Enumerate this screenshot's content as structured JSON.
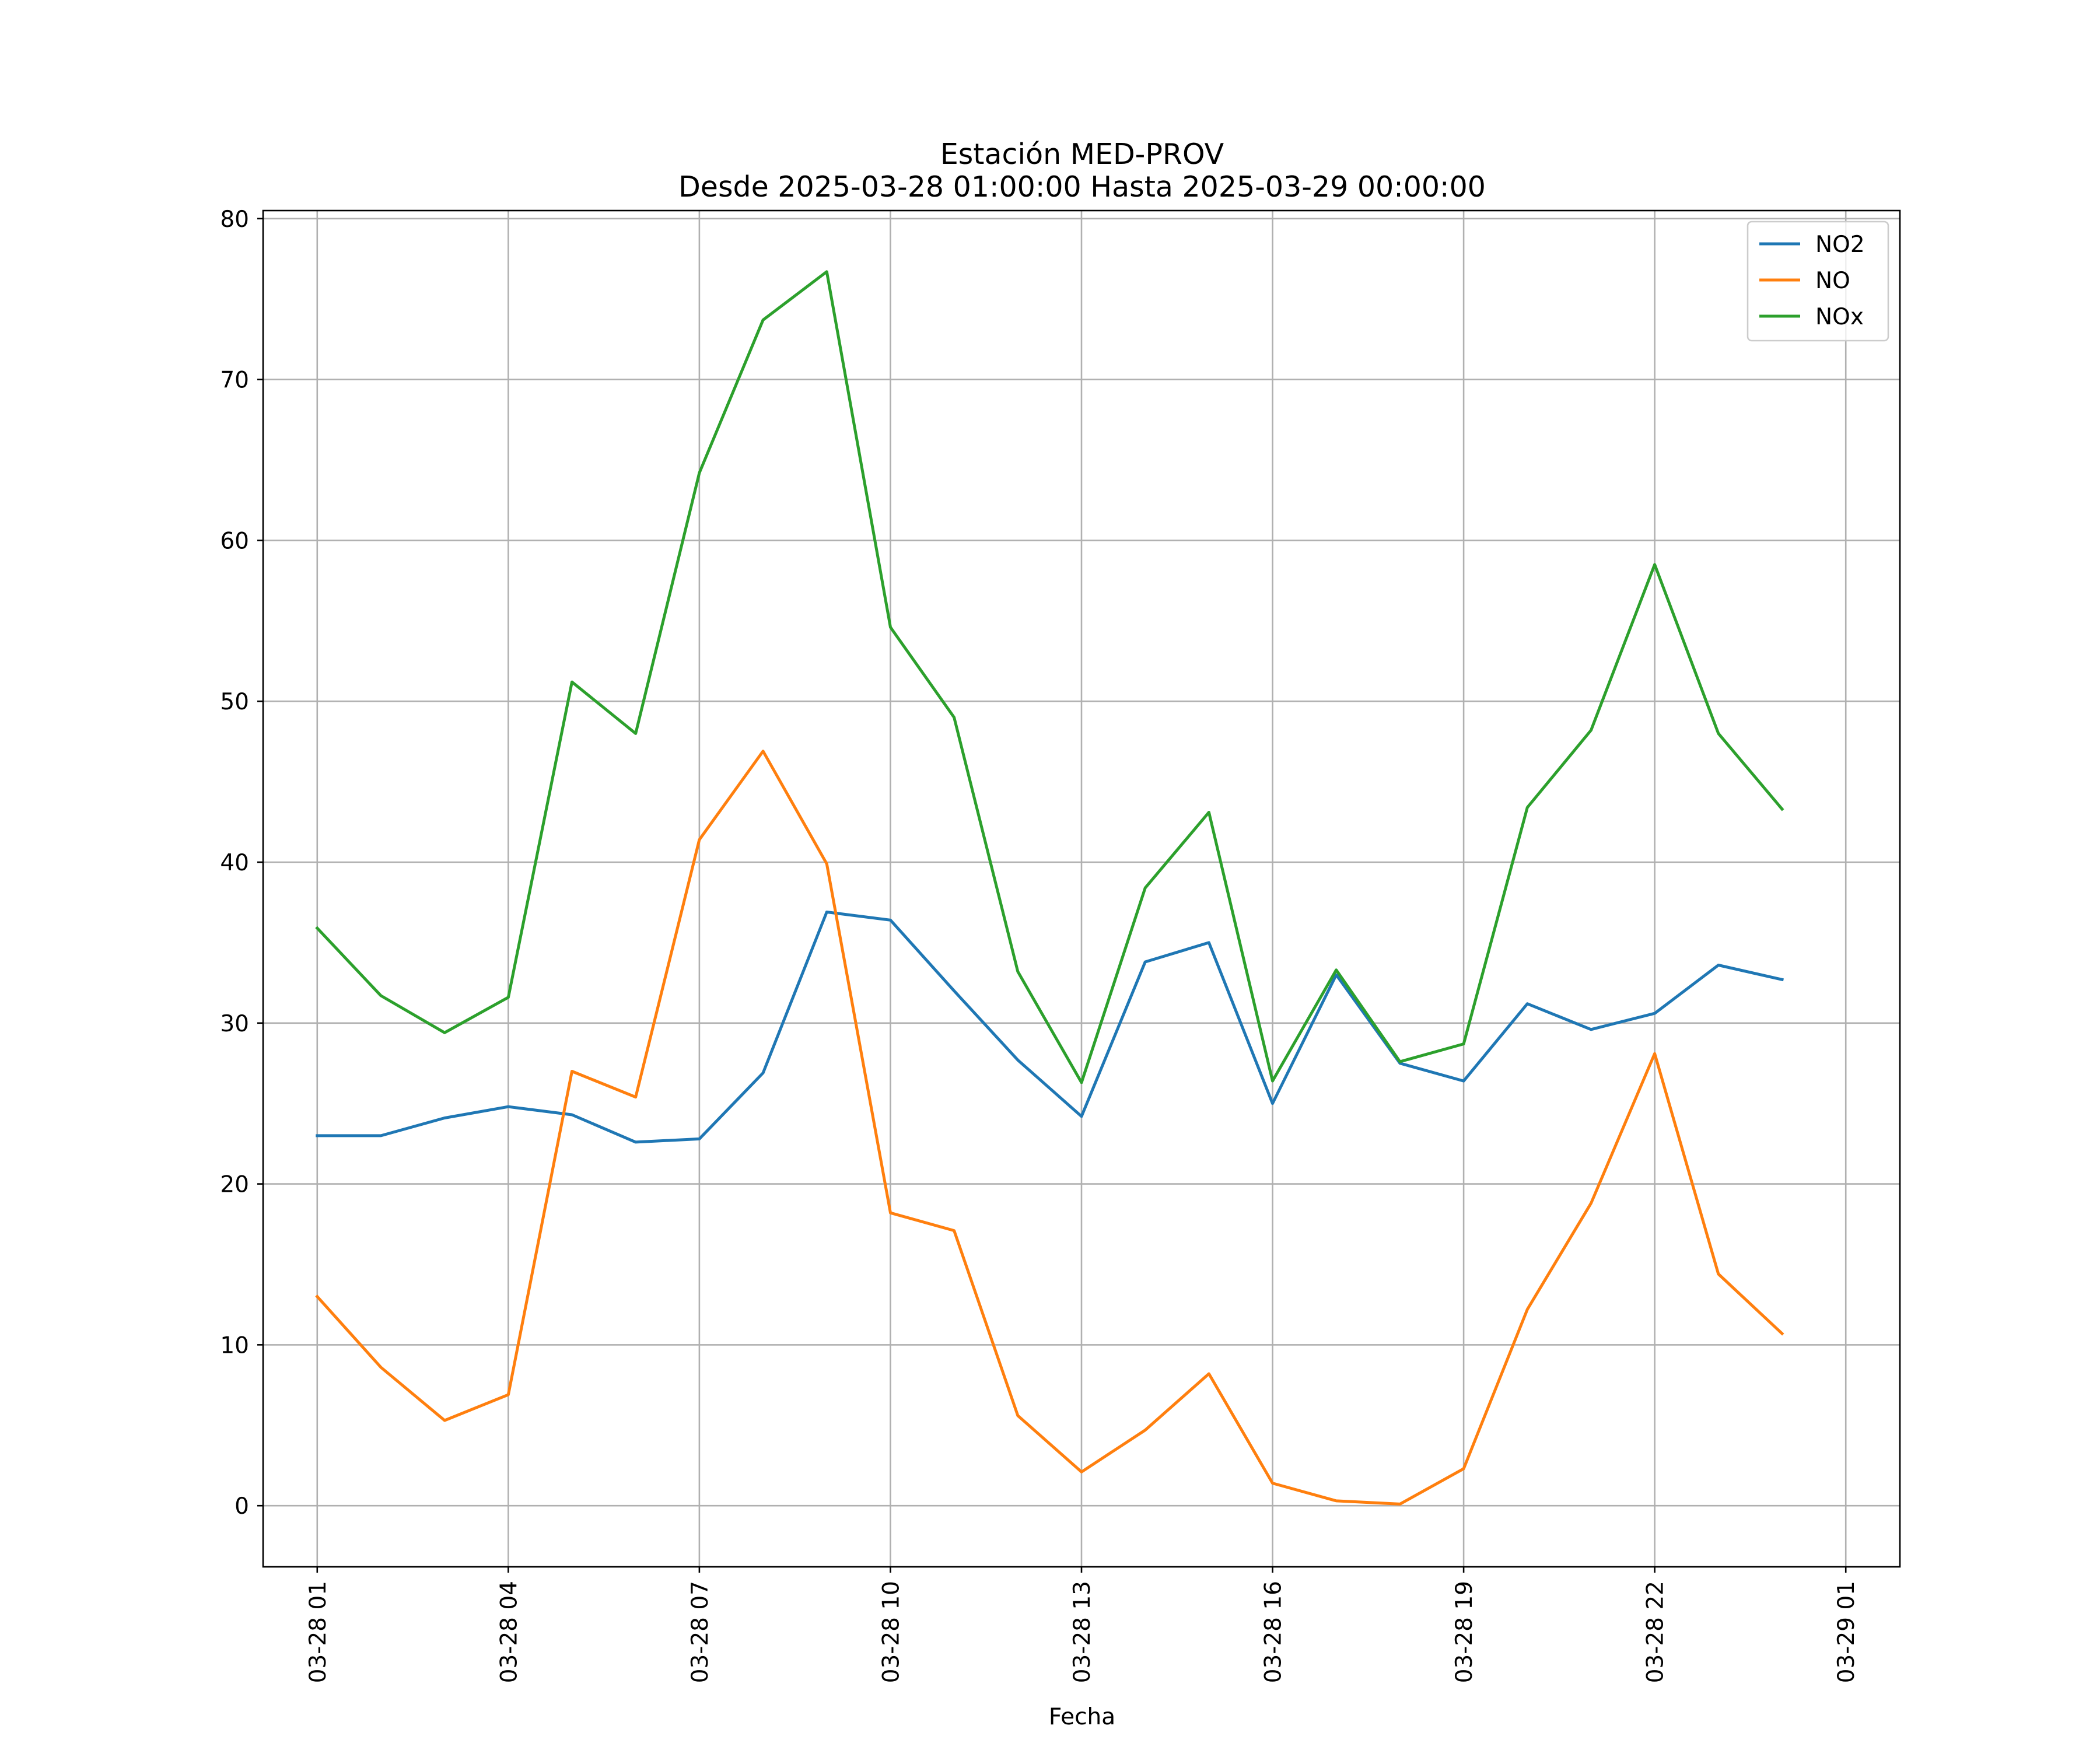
{
  "chart_data": {
    "type": "line",
    "title": "Estación MED-PROV",
    "subtitle": "Desde 2025-03-28 01:00:00 Hasta 2025-03-29 00:00:00",
    "xlabel": "Fecha",
    "ylabel": "",
    "x": [
      "03-28 01",
      "03-28 02",
      "03-28 03",
      "03-28 04",
      "03-28 05",
      "03-28 06",
      "03-28 07",
      "03-28 08",
      "03-28 09",
      "03-28 10",
      "03-28 11",
      "03-28 12",
      "03-28 13",
      "03-28 14",
      "03-28 15",
      "03-28 16",
      "03-28 17",
      "03-28 18",
      "03-28 19",
      "03-28 20",
      "03-28 21",
      "03-28 22",
      "03-28 23",
      "03-29 00"
    ],
    "x_ticks": [
      "03-28 01",
      "03-28 04",
      "03-28 07",
      "03-28 10",
      "03-28 13",
      "03-28 16",
      "03-28 19",
      "03-28 22",
      "03-29 01"
    ],
    "xlim": [
      "03-28 00:09",
      "03-29 01:51"
    ],
    "ylim": [
      -3.8,
      80.5
    ],
    "y_ticks": [
      0,
      10,
      20,
      30,
      40,
      50,
      60,
      70,
      80
    ],
    "grid": true,
    "legend_position": "top-right",
    "series": [
      {
        "name": "NO2",
        "color": "#1f77b4",
        "values": [
          23.0,
          23.0,
          24.1,
          24.8,
          24.3,
          22.6,
          22.8,
          26.9,
          36.9,
          36.4,
          32.0,
          27.7,
          24.2,
          33.8,
          35.0,
          25.0,
          33.0,
          27.5,
          26.4,
          31.2,
          29.6,
          30.6,
          33.6,
          32.7
        ]
      },
      {
        "name": "NO",
        "color": "#ff7f0e",
        "values": [
          13.0,
          8.6,
          5.3,
          6.9,
          27.0,
          25.4,
          41.4,
          46.9,
          39.9,
          18.2,
          17.1,
          5.6,
          2.1,
          4.7,
          8.2,
          1.4,
          0.3,
          0.1,
          2.3,
          12.2,
          18.8,
          28.1,
          14.4,
          10.7
        ]
      },
      {
        "name": "NOx",
        "color": "#2ca02c",
        "values": [
          35.9,
          31.7,
          29.4,
          31.6,
          51.2,
          48.0,
          64.2,
          73.7,
          76.7,
          54.6,
          49.0,
          33.2,
          26.3,
          38.4,
          43.1,
          26.4,
          33.3,
          27.6,
          28.7,
          43.4,
          48.2,
          58.5,
          48.0,
          43.3
        ]
      }
    ]
  }
}
